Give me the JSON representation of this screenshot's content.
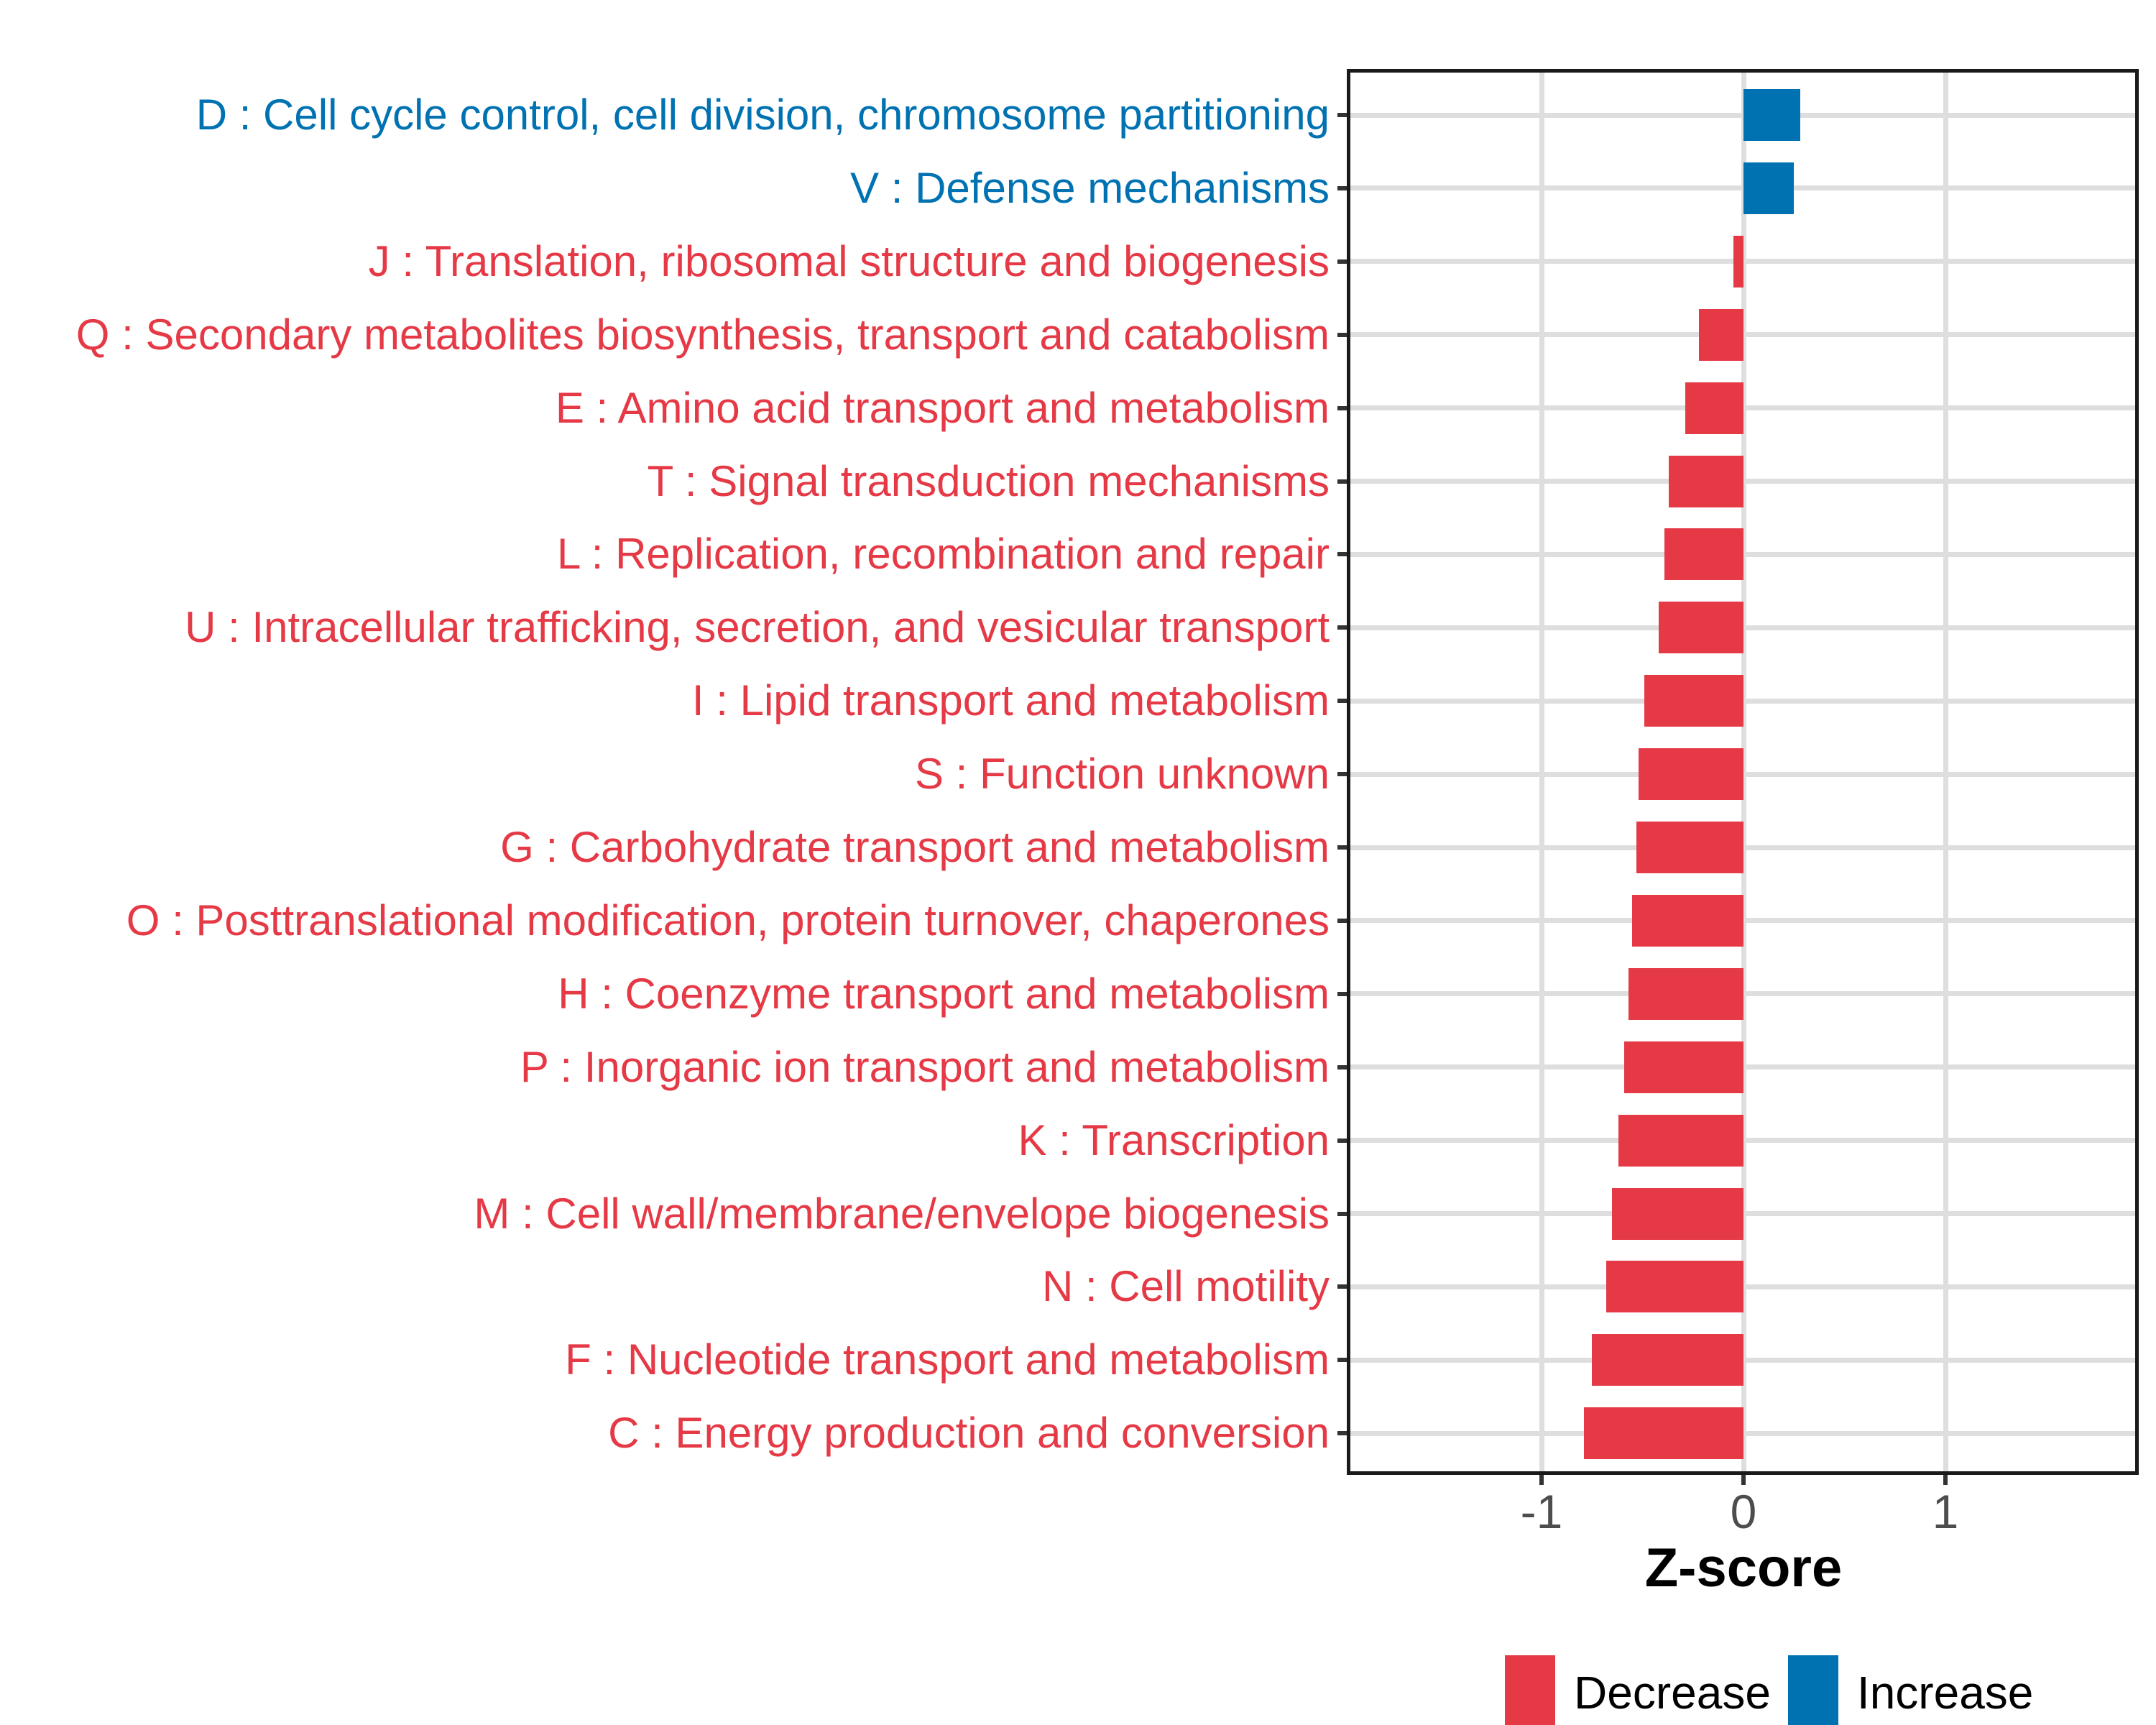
{
  "figure": {
    "background": "#FFFFFF",
    "panel_border_color": "#1A1A1A",
    "gridline_color": "#DEDEDE",
    "tick_color": "#333333",
    "tick_label_color": "#4D4D4D",
    "xlabel": "Z-score",
    "legend": {
      "position": "bottom",
      "items": [
        {
          "label": "Decrease",
          "color": "#E53946"
        },
        {
          "label": "Increase",
          "color": "#0072B2"
        }
      ]
    }
  },
  "chart_data": {
    "type": "bar",
    "orientation": "horizontal",
    "title": "",
    "xlabel": "Z-score",
    "ylabel": "",
    "xlim": [
      -1.96,
      1.98
    ],
    "x_ticks": [
      "-1",
      "0",
      "1"
    ],
    "x_tick_values": [
      -1,
      0,
      1
    ],
    "grid": true,
    "legend_position": "bottom",
    "colors": {
      "Decrease": "#E53946",
      "Increase": "#0072B2"
    },
    "categories": [
      {
        "label": "D : Cell cycle control, cell division, chromosome partitioning",
        "value": 0.28,
        "direction": "Increase"
      },
      {
        "label": "V : Defense mechanisms",
        "value": 0.25,
        "direction": "Increase"
      },
      {
        "label": "J : Translation, ribosomal structure and biogenesis",
        "value": -0.05,
        "direction": "Decrease"
      },
      {
        "label": "Q : Secondary metabolites biosynthesis, transport and catabolism",
        "value": -0.22,
        "direction": "Decrease"
      },
      {
        "label": "E : Amino acid transport and metabolism",
        "value": -0.29,
        "direction": "Decrease"
      },
      {
        "label": "T : Signal transduction mechanisms",
        "value": -0.37,
        "direction": "Decrease"
      },
      {
        "label": "L : Replication, recombination and repair",
        "value": -0.39,
        "direction": "Decrease"
      },
      {
        "label": "U : Intracellular trafficking, secretion, and vesicular transport",
        "value": -0.42,
        "direction": "Decrease"
      },
      {
        "label": "I : Lipid transport and metabolism",
        "value": -0.49,
        "direction": "Decrease"
      },
      {
        "label": "S : Function unknown",
        "value": -0.52,
        "direction": "Decrease"
      },
      {
        "label": "G : Carbohydrate transport and metabolism",
        "value": -0.53,
        "direction": "Decrease"
      },
      {
        "label": "O : Posttranslational modification, protein turnover, chaperones",
        "value": -0.55,
        "direction": "Decrease"
      },
      {
        "label": "H : Coenzyme transport and metabolism",
        "value": -0.57,
        "direction": "Decrease"
      },
      {
        "label": "P : Inorganic ion transport and metabolism",
        "value": -0.59,
        "direction": "Decrease"
      },
      {
        "label": "K : Transcription",
        "value": -0.62,
        "direction": "Decrease"
      },
      {
        "label": "M : Cell wall/membrane/envelope biogenesis",
        "value": -0.65,
        "direction": "Decrease"
      },
      {
        "label": "N : Cell motility",
        "value": -0.68,
        "direction": "Decrease"
      },
      {
        "label": "F : Nucleotide transport and metabolism",
        "value": -0.75,
        "direction": "Decrease"
      },
      {
        "label": "C : Energy production and conversion",
        "value": -0.79,
        "direction": "Decrease"
      }
    ]
  }
}
